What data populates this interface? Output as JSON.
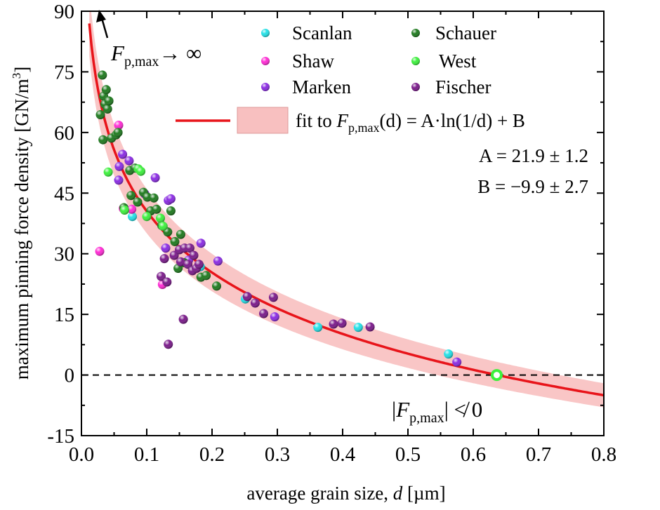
{
  "chart_data": {
    "type": "scatter",
    "title": "",
    "xlabel": {
      "prefix": "average grain size, ",
      "var": "d",
      "suffix": " [µm]"
    },
    "ylabel": {
      "prefix": "maximum pinning force density [GN/m",
      "sup": "3",
      "suffix": "]"
    },
    "xlim": [
      0.0,
      0.8
    ],
    "ylim": [
      -15,
      90
    ],
    "xticks": [
      0.0,
      0.1,
      0.2,
      0.3,
      0.4,
      0.5,
      0.6,
      0.7,
      0.8
    ],
    "xtick_labels": [
      "0.0",
      "0.1",
      "0.2",
      "0.3",
      "0.4",
      "0.5",
      "0.6",
      "0.7",
      "0.8"
    ],
    "yticks": [
      -15,
      0,
      15,
      30,
      45,
      60,
      75,
      90
    ],
    "ytick_labels": [
      "-15",
      "0",
      "15",
      "30",
      "45",
      "60",
      "75",
      "90"
    ],
    "grid": false,
    "legend_position": "top-right",
    "series": [
      {
        "name": "Scanlan",
        "color": "#22e0e6",
        "points": [
          [
            0.078,
            39.2
          ],
          [
            0.182,
            26.8
          ],
          [
            0.251,
            18.8
          ],
          [
            0.362,
            11.8
          ],
          [
            0.424,
            11.8
          ],
          [
            0.562,
            5.2
          ]
        ]
      },
      {
        "name": "Shaw",
        "color": "#ff2ad4",
        "points": [
          [
            0.028,
            30.6
          ],
          [
            0.057,
            61.8
          ],
          [
            0.064,
            41.2
          ],
          [
            0.077,
            41.0
          ],
          [
            0.124,
            22.4
          ]
        ]
      },
      {
        "name": "Marken",
        "color": "#8a2be2",
        "points": [
          [
            0.057,
            48.2
          ],
          [
            0.058,
            51.6
          ],
          [
            0.063,
            54.6
          ],
          [
            0.073,
            53.0
          ],
          [
            0.097,
            44.8
          ],
          [
            0.113,
            48.8
          ],
          [
            0.129,
            31.4
          ],
          [
            0.133,
            43.2
          ],
          [
            0.137,
            43.6
          ],
          [
            0.164,
            28.4
          ],
          [
            0.183,
            32.6
          ],
          [
            0.209,
            28.2
          ],
          [
            0.296,
            14.4
          ],
          [
            0.575,
            3.2
          ]
        ]
      },
      {
        "name": "Schauer",
        "color": "#1e7a1e",
        "points": [
          [
            0.029,
            64.4
          ],
          [
            0.032,
            74.2
          ],
          [
            0.033,
            58.2
          ],
          [
            0.034,
            69.0
          ],
          [
            0.036,
            67.0
          ],
          [
            0.038,
            70.6
          ],
          [
            0.04,
            65.8
          ],
          [
            0.042,
            67.8
          ],
          [
            0.046,
            58.6
          ],
          [
            0.053,
            59.4
          ],
          [
            0.056,
            60.0
          ],
          [
            0.065,
            41.4
          ],
          [
            0.074,
            50.6
          ],
          [
            0.076,
            44.4
          ],
          [
            0.082,
            51.2
          ],
          [
            0.086,
            42.8
          ],
          [
            0.095,
            45.2
          ],
          [
            0.101,
            44.0
          ],
          [
            0.106,
            40.6
          ],
          [
            0.111,
            43.8
          ],
          [
            0.115,
            41.0
          ],
          [
            0.123,
            37.0
          ],
          [
            0.132,
            35.4
          ],
          [
            0.137,
            40.6
          ],
          [
            0.143,
            33.0
          ],
          [
            0.148,
            26.4
          ],
          [
            0.152,
            34.8
          ],
          [
            0.157,
            27.8
          ],
          [
            0.183,
            24.2
          ],
          [
            0.191,
            24.6
          ],
          [
            0.207,
            22.0
          ]
        ]
      },
      {
        "name": "West",
        "color": "#3cf03c",
        "points": [
          [
            0.041,
            50.2
          ],
          [
            0.066,
            40.8
          ],
          [
            0.087,
            51.0
          ],
          [
            0.091,
            50.4
          ],
          [
            0.1,
            39.2
          ],
          [
            0.121,
            38.8
          ],
          [
            0.125,
            36.8
          ]
        ]
      },
      {
        "name": "Fischer",
        "color": "#7a1a8a",
        "points": [
          [
            0.122,
            24.4
          ],
          [
            0.127,
            28.8
          ],
          [
            0.131,
            23.0
          ],
          [
            0.133,
            7.6
          ],
          [
            0.142,
            29.6
          ],
          [
            0.15,
            31.0
          ],
          [
            0.152,
            28.0
          ],
          [
            0.156,
            13.8
          ],
          [
            0.158,
            31.4
          ],
          [
            0.163,
            27.4
          ],
          [
            0.166,
            31.4
          ],
          [
            0.17,
            25.8
          ],
          [
            0.172,
            29.6
          ],
          [
            0.176,
            26.4
          ],
          [
            0.18,
            27.4
          ],
          [
            0.254,
            19.4
          ],
          [
            0.266,
            17.8
          ],
          [
            0.279,
            15.2
          ],
          [
            0.294,
            19.2
          ],
          [
            0.386,
            12.6
          ],
          [
            0.399,
            12.8
          ],
          [
            0.442,
            11.9
          ]
        ]
      }
    ],
    "fit": {
      "label_prefix": "fit to ",
      "label_formula": "(d) = A·ln(1/d) + B",
      "A": 21.9,
      "A_err": 1.2,
      "B": -9.9,
      "B_err": 2.7,
      "A_text": "A = 21.9 ± 1.2",
      "B_text": "B = −9.9 ± 2.7",
      "line_color": "#e8141a",
      "band_color": "#f8c0c0"
    },
    "zero_crossing": {
      "x": 0.636,
      "y": 0,
      "color": "#3cf03c"
    },
    "annotations": {
      "top_left_suffix": "→ ∞",
      "bottom_right_prefix": "|",
      "bottom_right_suffix": "| ≮ 0",
      "symbol_main": "F",
      "symbol_sub": "p,max"
    }
  }
}
